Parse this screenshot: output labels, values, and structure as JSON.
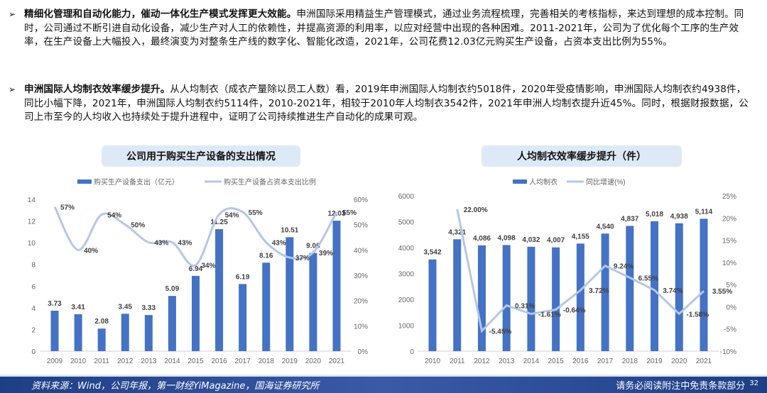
{
  "paragraphs": [
    {
      "bold": "精细化管理和自动化能力，催动一体化生产模式发挥更大效能。",
      "text": "申洲国际采用精益生产管理模式，通过业务流程梳理，完善相关的考核指标，来达到理想的成本控制。同时，公司通过不断引进自动化设备，减少生产对人工的依赖性，并提高资源的利用率，以应对经营中出现的各种困难。2011-2021年，公司为了优化每个工序的生产效率，在生产设备上大幅投入，最终演变为对整条生产线的数字化、智能化改造，2021年，公司花费12.03亿元购买生产设备，占资本支出比例为55%。"
    },
    {
      "bold": "申洲国际人均制衣效率缓步提升。",
      "text": "从人均制衣（成衣产量除以员工人数）看，2019年申洲国际人均制衣约5018件，2020年受疫情影响，申洲国际人均制衣约4938件，同比小幅下降，2021年，申洲国际人均制衣约5114件，2010-2021年，相较于2010年人均制衣3542件，2021年申洲人均制衣提升近45%。同时，根据财报数据，公司上市至今的人均收入也持续处于提升进程中，证明了公司持续推进生产自动化的成果可观。"
    }
  ],
  "bullet": "➢",
  "chart_data": [
    {
      "type": "bar+line",
      "title": "公司用于购买生产设备的支出情况",
      "categories": [
        "2009",
        "2010",
        "2011",
        "2012",
        "2013",
        "2014",
        "2015",
        "2016",
        "2017",
        "2018",
        "2019",
        "2020",
        "2021"
      ],
      "series": [
        {
          "name": "购买生产设备支出（亿元）",
          "type": "bar",
          "axis": "left",
          "values": [
            3.73,
            3.41,
            2.08,
            3.45,
            3.33,
            5.09,
            6.94,
            11.25,
            6.19,
            8.16,
            10.51,
            9.06,
            12.03
          ],
          "labels": [
            "3.73",
            "3.41",
            "2.08",
            "3.45",
            "3.33",
            "5.09",
            "6.94",
            "11.25",
            "6.19",
            "8.16",
            "10.51",
            "9.06",
            "12.03"
          ]
        },
        {
          "name": "购买生产设备占资本支出比例",
          "type": "line",
          "axis": "right",
          "values": [
            57,
            40,
            54,
            50,
            43,
            43,
            34,
            54,
            55,
            43,
            37,
            39,
            55
          ],
          "labels": [
            "57%",
            "40%",
            "54%",
            "50%",
            "43%",
            "43%",
            "34%",
            "54%",
            "55%",
            "43%",
            "37%",
            "39%",
            "55%"
          ]
        }
      ],
      "ylim": [
        0,
        14
      ],
      "yticks": [
        "0",
        "2",
        "4",
        "6",
        "8",
        "10",
        "12",
        "14"
      ],
      "y2lim": [
        0,
        60
      ],
      "y2ticks": [
        "0%",
        "10%",
        "20%",
        "30%",
        "40%",
        "50%",
        "60%"
      ],
      "legend": "top"
    },
    {
      "type": "bar+line",
      "title": "人均制衣效率缓步提升（件）",
      "categories": [
        "2010",
        "2011",
        "2012",
        "2013",
        "2014",
        "2015",
        "2016",
        "2017",
        "2018",
        "2019",
        "2020",
        "2021"
      ],
      "series": [
        {
          "name": "人均制衣",
          "type": "bar",
          "axis": "left",
          "values": [
            3542,
            4321,
            4086,
            4098,
            4032,
            4007,
            4155,
            4540,
            4837,
            5018,
            4938,
            5114
          ],
          "labels": [
            "3,542",
            "4,321",
            "4,086",
            "4,098",
            "4,032",
            "4,007",
            "4,155",
            "4,540",
            "4,837",
            "5,018",
            "4,938",
            "5,114"
          ]
        },
        {
          "name": "同比增速(%)",
          "type": "line",
          "axis": "right",
          "values": [
            null,
            22.0,
            -5.45,
            0.31,
            -1.61,
            -0.64,
            3.72,
            9.24,
            6.55,
            3.74,
            -1.58,
            3.55
          ],
          "labels": [
            "",
            "22.00%",
            "-5.45%",
            "0.31%",
            "-1.61%",
            "-0.64%",
            "3.72%",
            "9.24%",
            "6.55%",
            "3.74%",
            "-1.58%",
            "3.55%"
          ]
        }
      ],
      "ylim": [
        0,
        6000
      ],
      "yticks": [
        "0",
        "1000",
        "2000",
        "3000",
        "4000",
        "5000",
        "6000"
      ],
      "y2lim": [
        -10,
        25
      ],
      "y2ticks": [
        "-10%",
        "-5%",
        "0%",
        "5%",
        "10%",
        "15%",
        "20%",
        "25%"
      ],
      "legend": "top"
    }
  ],
  "colors": {
    "bar": "#4472c4",
    "line": "#b4c7e7",
    "title_bg": "#dde9f6"
  },
  "footer": {
    "source": "资料来源：Wind，公司年报，第一财经YiMagazine，国海证券研究所",
    "disclaimer": "请务必阅读附注中免责条款部分",
    "page": "32"
  }
}
